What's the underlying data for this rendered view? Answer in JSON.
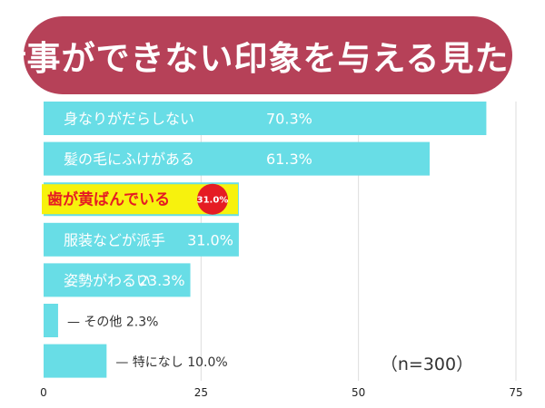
{
  "title": "仕事ができない印象を与える見た目",
  "note": "（n=300）",
  "colors": {
    "title_bg": "#b64158",
    "bar": "#68dde6",
    "highlight": "#f7f20d",
    "badge": "#e51c23",
    "label": "#ffffff",
    "dark_label": "#333333"
  },
  "chart_data": {
    "type": "bar",
    "orientation": "horizontal",
    "title": "仕事ができない印象を与える見た目",
    "xlabel": "",
    "ylabel": "",
    "xlim": [
      0,
      75
    ],
    "xticks": [
      0,
      25,
      50,
      75
    ],
    "grid": true,
    "categories": [
      "身なりがだらしない",
      "髪の毛にふけがある",
      "歯が黄ばんでいる",
      "服装などが派手",
      "姿勢がわるい",
      "その他",
      "特になし"
    ],
    "values": [
      70.3,
      61.3,
      31.0,
      31.0,
      23.3,
      2.3,
      10.0
    ],
    "value_labels": [
      "70.3%",
      "61.3%",
      "31.0%",
      "31.0%",
      "23.3%",
      "2.3%",
      "10.0%"
    ],
    "highlight_index": 2
  }
}
